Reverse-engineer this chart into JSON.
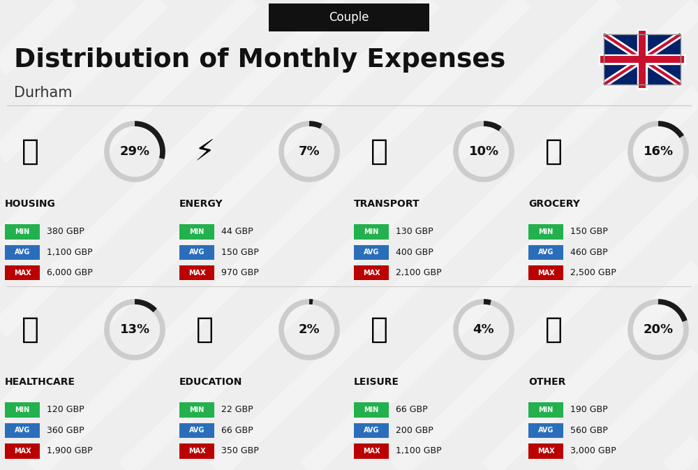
{
  "title": "Distribution of Monthly Expenses",
  "subtitle": "Durham",
  "label_top": "Couple",
  "background_color": "#eeeeee",
  "categories": [
    {
      "name": "HOUSING",
      "pct": 29,
      "min": "380 GBP",
      "avg": "1,100 GBP",
      "max": "6,000 GBP"
    },
    {
      "name": "ENERGY",
      "pct": 7,
      "min": "44 GBP",
      "avg": "150 GBP",
      "max": "970 GBP"
    },
    {
      "name": "TRANSPORT",
      "pct": 10,
      "min": "130 GBP",
      "avg": "400 GBP",
      "max": "2,100 GBP"
    },
    {
      "name": "GROCERY",
      "pct": 16,
      "min": "150 GBP",
      "avg": "460 GBP",
      "max": "2,500 GBP"
    },
    {
      "name": "HEALTHCARE",
      "pct": 13,
      "min": "120 GBP",
      "avg": "360 GBP",
      "max": "1,900 GBP"
    },
    {
      "name": "EDUCATION",
      "pct": 2,
      "min": "22 GBP",
      "avg": "66 GBP",
      "max": "350 GBP"
    },
    {
      "name": "LEISURE",
      "pct": 4,
      "min": "66 GBP",
      "avg": "200 GBP",
      "max": "1,100 GBP"
    },
    {
      "name": "OTHER",
      "pct": 20,
      "min": "190 GBP",
      "avg": "560 GBP",
      "max": "3,000 GBP"
    }
  ],
  "color_min": "#22b14c",
  "color_avg": "#2a6ebb",
  "color_max": "#bb0000",
  "color_arc_dark": "#1a1a1a",
  "color_arc_light": "#cccccc",
  "flag_blue": "#012169",
  "flag_red": "#C8102E",
  "cols": 4,
  "icon_fontsize": 30,
  "pct_fontsize": 13,
  "cat_fontsize": 10,
  "badge_fontsize": 7,
  "val_fontsize": 9,
  "title_fontsize": 27,
  "subtitle_fontsize": 15,
  "toplabel_fontsize": 12
}
